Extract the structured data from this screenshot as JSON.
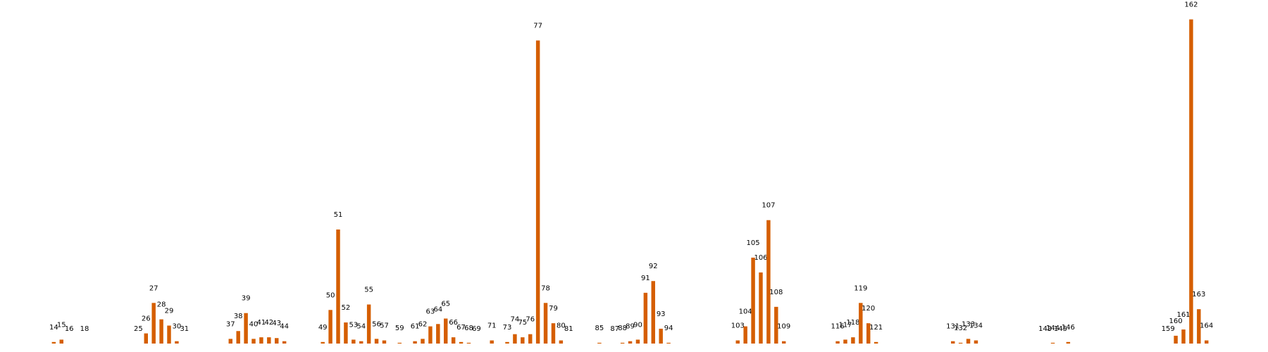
{
  "chart_data": {
    "type": "bar",
    "color": "#d55e00",
    "x": [
      14,
      15,
      16,
      18,
      25,
      26,
      27,
      28,
      29,
      30,
      31,
      37,
      38,
      39,
      40,
      41,
      42,
      43,
      44,
      49,
      50,
      51,
      52,
      53,
      54,
      55,
      56,
      57,
      59,
      61,
      62,
      63,
      64,
      65,
      66,
      67,
      68,
      69,
      71,
      73,
      74,
      75,
      76,
      77,
      78,
      79,
      80,
      81,
      85,
      87,
      88,
      89,
      90,
      91,
      92,
      93,
      94,
      103,
      104,
      105,
      106,
      107,
      108,
      109,
      116,
      117,
      118,
      119,
      120,
      121,
      131,
      132,
      133,
      134,
      143,
      144,
      145,
      146,
      159,
      160,
      161,
      162,
      163,
      164
    ],
    "values": [
      2,
      5,
      0,
      0,
      0,
      13,
      52,
      31,
      23,
      3,
      0,
      6,
      16,
      39,
      6,
      8,
      8,
      7,
      3,
      2,
      43,
      146,
      27,
      5,
      3,
      50,
      6,
      4,
      1,
      3,
      6,
      22,
      25,
      32,
      8,
      2,
      1,
      0,
      4,
      2,
      12,
      8,
      12,
      388,
      52,
      26,
      4,
      0,
      1,
      0,
      1,
      3,
      5,
      65,
      80,
      19,
      1,
      4,
      22,
      110,
      91,
      158,
      47,
      3,
      3,
      5,
      8,
      52,
      26,
      2,
      3,
      1,
      6,
      4,
      0,
      1,
      0,
      2,
      0,
      10,
      18,
      415,
      44,
      4
    ],
    "xlim": [
      7,
      172
    ],
    "ylim": [
      0,
      420
    ]
  }
}
